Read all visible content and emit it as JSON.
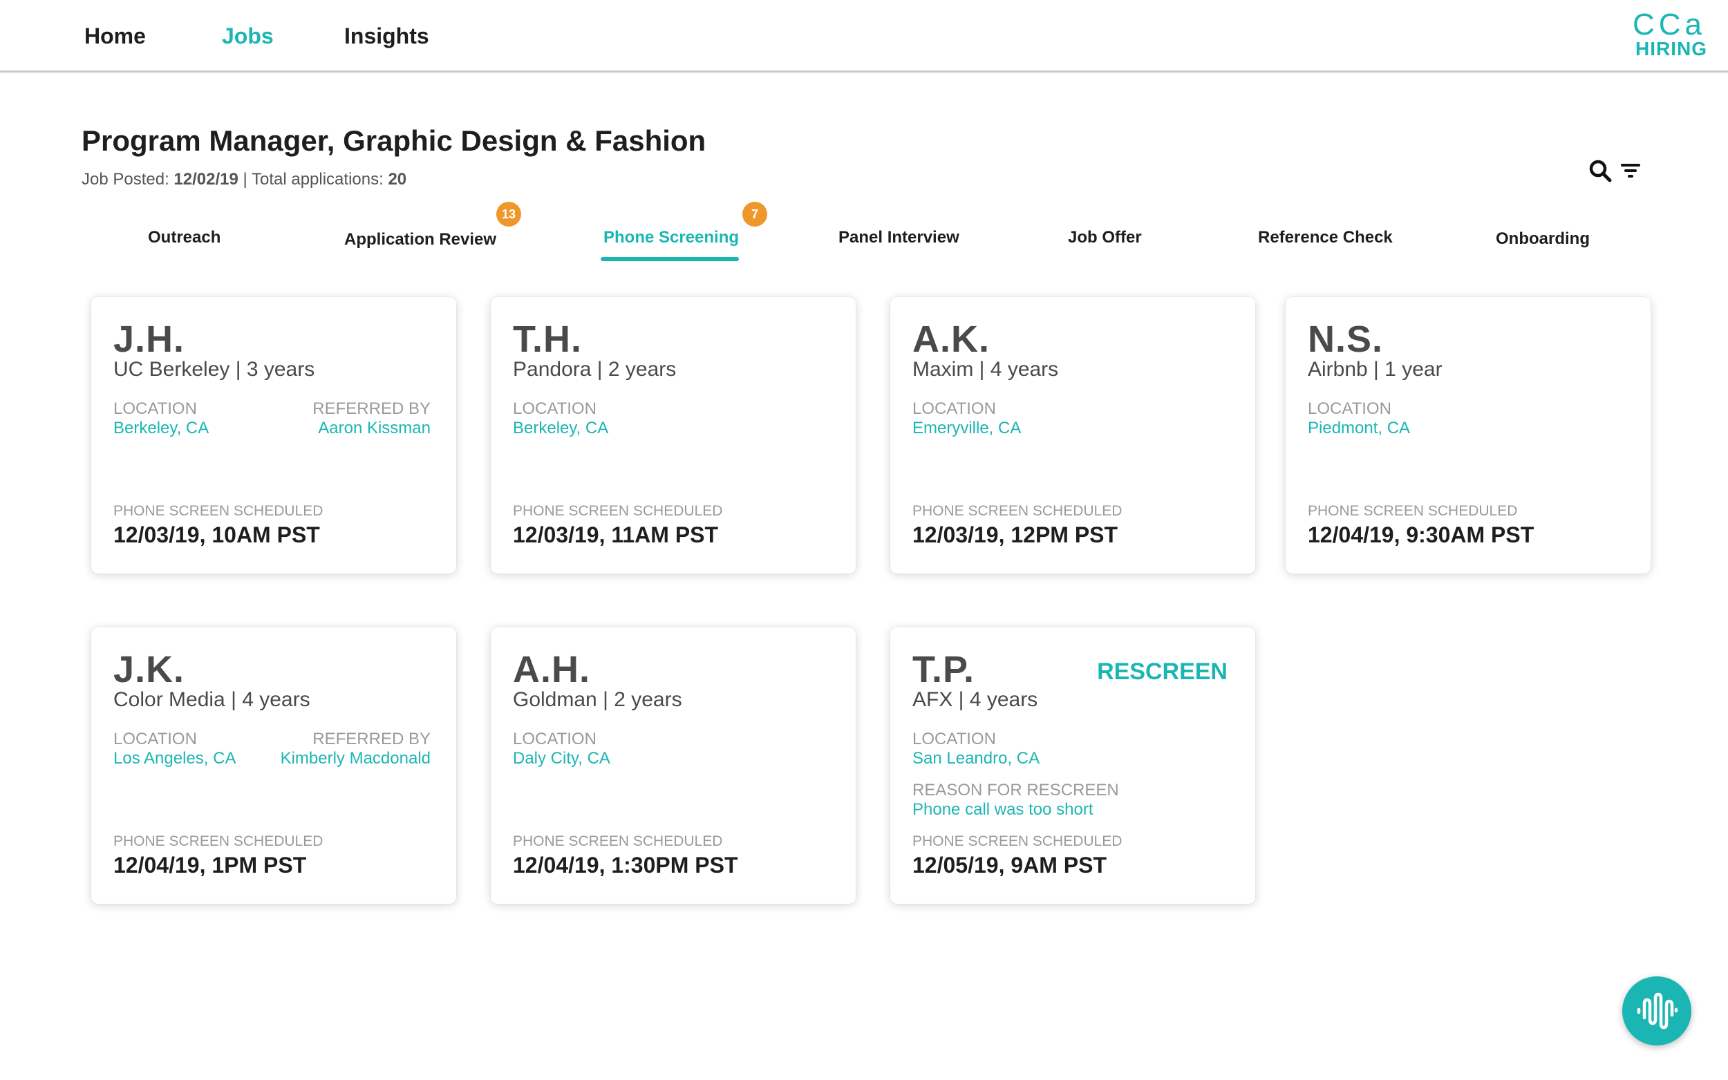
{
  "nav": {
    "links": [
      "Home",
      "Jobs",
      "Insights"
    ],
    "active": "Jobs",
    "logo_top": "CCa",
    "logo_bottom": "HIRING"
  },
  "job": {
    "title": "Program Manager, Graphic Design & Fashion",
    "posted_label": "Job Posted:",
    "posted_date": "12/02/19",
    "separator": "|",
    "apps_label": "Total applications:",
    "apps_count": "20"
  },
  "tools": {
    "search_icon": "search-icon",
    "filter_icon": "filter-icon"
  },
  "tabs": [
    {
      "label": "Outreach"
    },
    {
      "label": "Application Review",
      "badge": "13"
    },
    {
      "label": "Phone Screening",
      "badge": "7",
      "active": true
    },
    {
      "label": "Panel Interview"
    },
    {
      "label": "Job Offer"
    },
    {
      "label": "Reference Check"
    },
    {
      "label": "Onboarding"
    }
  ],
  "labels": {
    "location": "LOCATION",
    "referred_by": "REFERRED BY",
    "scheduled": "PHONE SCREEN SCHEDULED",
    "reason": "REASON FOR RESCREEN",
    "rescreen": "RESCREEN"
  },
  "cards": [
    {
      "initials": "J.H.",
      "company": "UC Berkeley | 3 years",
      "location": "Berkeley, CA",
      "referred_by": "Aaron Kissman",
      "scheduled": "12/03/19, 10AM PST"
    },
    {
      "initials": "T.H.",
      "company": "Pandora | 2 years",
      "location": "Berkeley, CA",
      "scheduled": "12/03/19, 11AM PST"
    },
    {
      "initials": "A.K.",
      "company": "Maxim | 4 years",
      "location": "Emeryville, CA",
      "scheduled": "12/03/19, 12PM PST"
    },
    {
      "initials": "N.S.",
      "company": "Airbnb | 1 year",
      "location": "Piedmont, CA",
      "scheduled": "12/04/19, 9:30AM PST"
    },
    {
      "initials": "J.K.",
      "company": "Color Media | 4 years",
      "location": "Los Angeles, CA",
      "referred_by": "Kimberly Macdonald",
      "scheduled": "12/04/19, 1PM PST"
    },
    {
      "initials": "A.H.",
      "company": "Goldman | 2 years",
      "location": "Daly City, CA",
      "scheduled": "12/04/19, 1:30PM PST"
    },
    {
      "initials": "T.P.",
      "company": "AFX | 4 years",
      "location": "San Leandro, CA",
      "rescreen": true,
      "reason": "Phone call was too short",
      "scheduled": "12/05/19, 9AM PST"
    }
  ],
  "fab": {
    "icon": "soundwave-icon"
  },
  "colors": {
    "accent": "#1bb6b3",
    "badge": "#f0972b"
  }
}
